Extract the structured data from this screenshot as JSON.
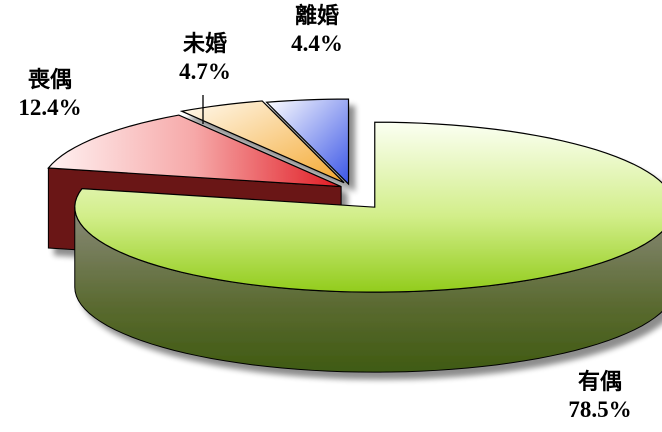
{
  "chart_data": {
    "type": "pie",
    "slices": [
      {
        "label": "有偶",
        "value": 78.5,
        "pct_label": "78.5%",
        "color": "#a6d63a"
      },
      {
        "label": "喪偶",
        "value": 12.4,
        "pct_label": "12.4%",
        "color": "#e8232a"
      },
      {
        "label": "未婚",
        "value": 4.7,
        "pct_label": "4.7%",
        "color": "#f6b64a"
      },
      {
        "label": "離婚",
        "value": 4.4,
        "pct_label": "4.4%",
        "color": "#4e66e6"
      }
    ]
  }
}
